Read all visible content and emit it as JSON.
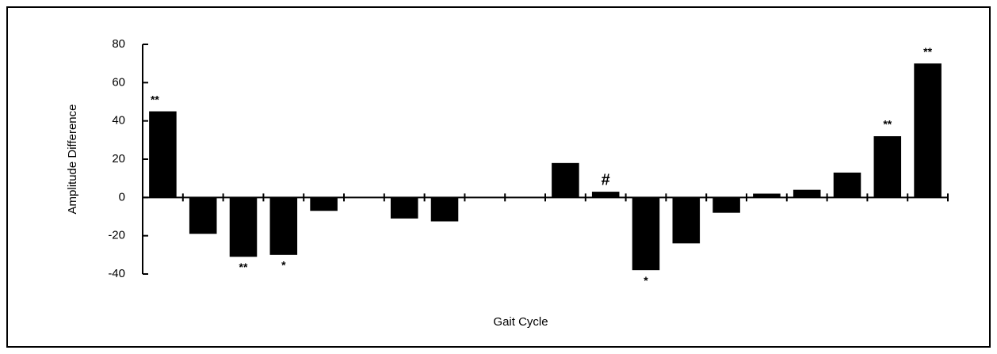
{
  "chart_data": {
    "type": "bar",
    "xlabel": "Gait Cycle",
    "ylabel": "Amplitude Difference",
    "categories": [
      null,
      null,
      null,
      null,
      null,
      null,
      null,
      null,
      null,
      null,
      null,
      null,
      null,
      null,
      null,
      null,
      null,
      null,
      null,
      null
    ],
    "values": [
      45,
      -19,
      -31,
      -30,
      -7,
      0,
      -11,
      -12.5,
      0,
      0,
      18,
      3,
      -38,
      -24,
      -8,
      2,
      4,
      13,
      32,
      70
    ],
    "color": "#000000",
    "ylim": [
      -40,
      80
    ],
    "yticks": [
      -40,
      -20,
      0,
      20,
      40,
      60,
      80
    ],
    "annotations": [
      {
        "index": 0,
        "text": "**",
        "position": "above"
      },
      {
        "index": 2,
        "text": "**",
        "position": "below"
      },
      {
        "index": 3,
        "text": "*",
        "position": "below"
      },
      {
        "index": 11,
        "text": "#",
        "position": "above"
      },
      {
        "index": 12,
        "text": "*",
        "position": "below"
      },
      {
        "index": 18,
        "text": "**",
        "position": "above"
      },
      {
        "index": 19,
        "text": "**",
        "position": "above"
      }
    ]
  }
}
